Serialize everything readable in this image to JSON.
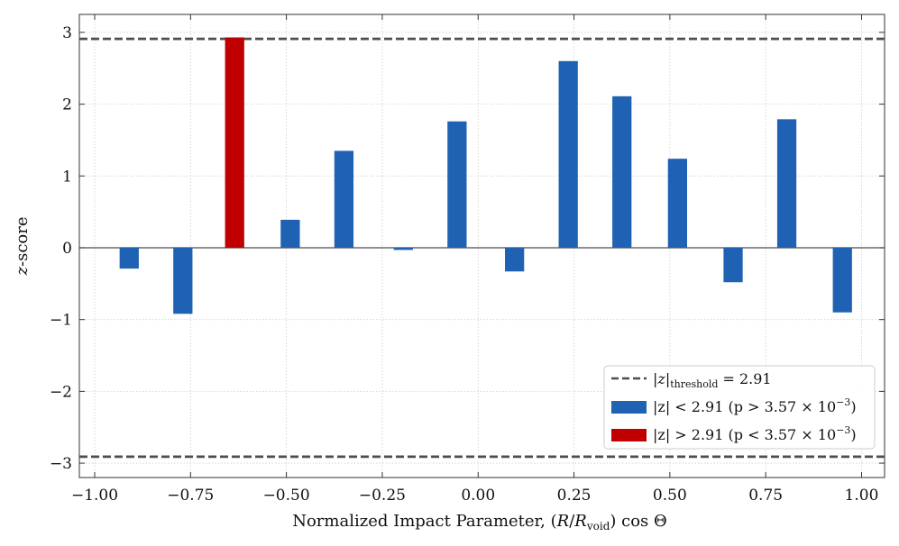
{
  "chart_data": {
    "type": "bar",
    "title": "",
    "xlabel": "Normalized Impact Parameter, (R/R_void) cos Θ",
    "xlabel_parts": {
      "prefix": "Normalized Impact Parameter, (",
      "r": "R",
      "slash": "/",
      "rvoid": "R",
      "void_sub": "void",
      "suffix": ") cos Θ"
    },
    "ylabel": "z-score",
    "ylabel_parts": {
      "z": "z",
      "rest": "-score"
    },
    "xlim": [
      -1.04,
      1.06
    ],
    "ylim": [
      -3.2,
      3.25
    ],
    "grid": true,
    "x_ticks": [
      -1.0,
      -0.75,
      -0.5,
      -0.25,
      0.0,
      0.25,
      0.5,
      0.75,
      1.0
    ],
    "x_tick_labels": [
      "−1.00",
      "−0.75",
      "−0.50",
      "−0.25",
      "0.00",
      "0.25",
      "0.50",
      "0.75",
      "1.00"
    ],
    "y_ticks": [
      -3,
      -2,
      -1,
      0,
      1,
      2,
      3
    ],
    "y_tick_labels": [
      "−3",
      "−2",
      "−1",
      "0",
      "1",
      "2",
      "3"
    ],
    "threshold": 2.91,
    "bar_width": 0.05,
    "x": [
      -0.91,
      -0.77,
      -0.635,
      -0.49,
      -0.35,
      -0.195,
      -0.055,
      0.095,
      0.235,
      0.375,
      0.52,
      0.665,
      0.805,
      0.95
    ],
    "values": [
      -0.29,
      -0.92,
      2.93,
      0.39,
      1.35,
      -0.03,
      1.76,
      -0.33,
      2.6,
      2.11,
      1.24,
      -0.48,
      1.79,
      -0.9
    ],
    "colors": {
      "normal": "#1f62b3",
      "significant": "#c00000",
      "threshold_line": "#4d4d4d",
      "zero_line": "#4d4d4d"
    },
    "legend": {
      "placement": "lower-right",
      "threshold_entry": {
        "lhs": "|z|",
        "sub": "threshold",
        "rhs": " = 2.91"
      },
      "below_entry": {
        "lhs": "|z| < 2.91 (p > 3.57 × 10",
        "exp": "−3",
        "close": ")"
      },
      "above_entry": {
        "lhs": "|z| > 2.91 (p < 3.57 × 10",
        "exp": "−3",
        "close": ")"
      }
    }
  }
}
